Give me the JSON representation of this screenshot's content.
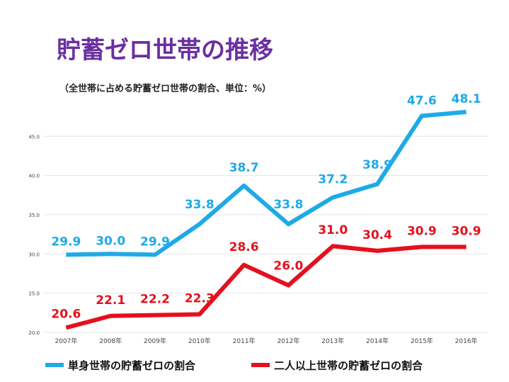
{
  "chart_data": {
    "type": "line",
    "title": "貯蓄ゼロ世帯の推移",
    "subtitle": "（全世帯に占める貯蓄ゼロ世帯の割合、単位：%）",
    "categories": [
      "2007年",
      "2008年",
      "2009年",
      "2010年",
      "2011年",
      "2012年",
      "2013年",
      "2014年",
      "2015年",
      "2016年"
    ],
    "ylim": [
      20.0,
      49.0
    ],
    "yticks": [
      "20.0",
      "25.0",
      "30.0",
      "35.0",
      "40.0",
      "45.0"
    ],
    "grid": true,
    "legend_position": "bottom",
    "series": [
      {
        "name": "単身世帯の貯蓄ゼロの割合",
        "color": "#1EAAE6",
        "values": [
          29.9,
          30.0,
          29.9,
          33.8,
          38.7,
          33.8,
          37.2,
          38.9,
          47.6,
          48.1
        ],
        "labels": [
          "29.9",
          "30.0",
          "29.9",
          "33.8",
          "38.7",
          "33.8",
          "37.2",
          "38.9",
          "47.6",
          "48.1"
        ]
      },
      {
        "name": "二人以上世帯の貯蓄ゼロの割合",
        "color": "#E5101C",
        "values": [
          20.6,
          22.1,
          22.2,
          22.3,
          28.6,
          26.0,
          31.0,
          30.4,
          30.9,
          30.9
        ],
        "labels": [
          "20.6",
          "22.1",
          "22.2",
          "22.3",
          "28.6",
          "26.0",
          "31.0",
          "30.4",
          "30.9",
          "30.9"
        ]
      }
    ]
  },
  "style": {
    "title_color": "#6A2FA0",
    "subtitle_color": "#222222",
    "grid_color": "#e6e6e6"
  }
}
